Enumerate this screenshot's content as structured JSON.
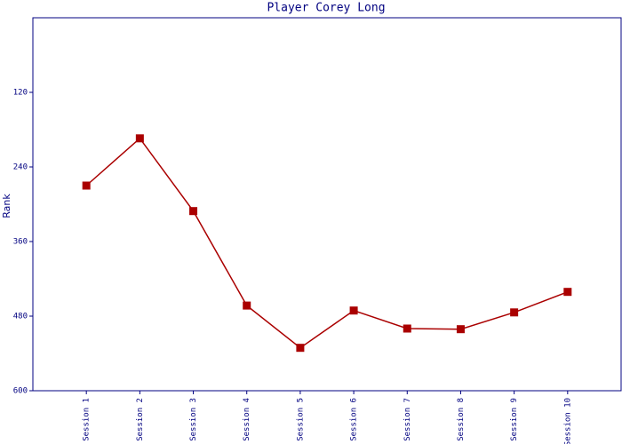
{
  "chart_data": {
    "type": "line",
    "title": "Player Corey Long",
    "y_label": "Rank",
    "categories": [
      "Session 1",
      "Session 2",
      "Session 3",
      "Session 4",
      "Session 5",
      "Session 6",
      "Session 7",
      "Session 8",
      "Session 9",
      "Session 10"
    ],
    "series": [
      {
        "name": "Rank",
        "color": "#aa0000",
        "values": [
          270,
          194,
          311,
          463,
          531,
          471,
          500,
          501,
          474,
          441
        ]
      }
    ],
    "ylim": [
      0,
      600
    ],
    "yticks": [
      120,
      240,
      360,
      480,
      600
    ],
    "y_inverted": true,
    "grid": false
  }
}
